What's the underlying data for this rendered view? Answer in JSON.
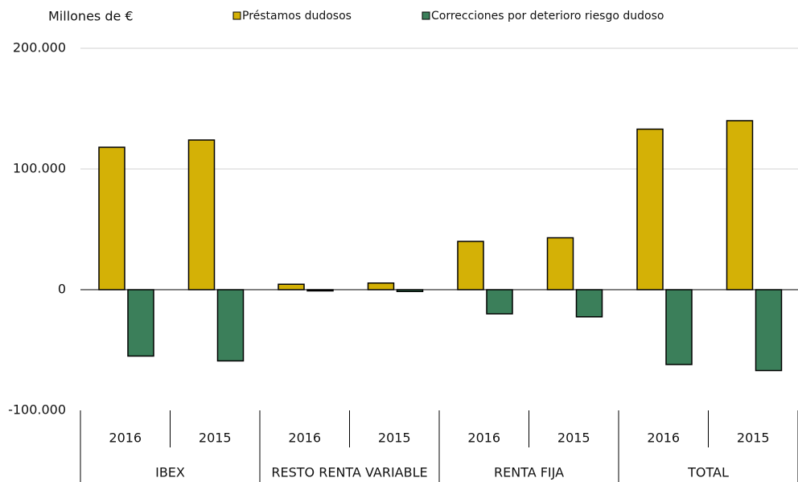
{
  "chart_data": {
    "type": "bar",
    "y_label": "Millones de €",
    "categories": [
      "2016",
      "2015",
      "2016",
      "2015",
      "2016",
      "2015",
      "2016",
      "2015"
    ],
    "groups": [
      "IBEX",
      "RESTO RENTA VARIABLE",
      "RENTA FIJA",
      "TOTAL"
    ],
    "series": [
      {
        "name": "Préstamos dudosos",
        "color": "#d4b106",
        "values": [
          118000,
          124000,
          4500,
          5500,
          40000,
          43000,
          133000,
          140000
        ]
      },
      {
        "name": "Correcciones por deterioro riesgo dudoso",
        "color": "#3b7f5a",
        "values": [
          -55000,
          -59000,
          -1000,
          -1500,
          -20000,
          -22500,
          -62000,
          -67000
        ]
      }
    ],
    "ylim": [
      -100000,
      200000
    ],
    "yticks": [
      {
        "value": -100000,
        "label": "-100.000"
      },
      0,
      {
        "value": 100000,
        "label": "100.000"
      },
      {
        "value": 200000,
        "label": "200.000"
      }
    ],
    "grid": true
  }
}
